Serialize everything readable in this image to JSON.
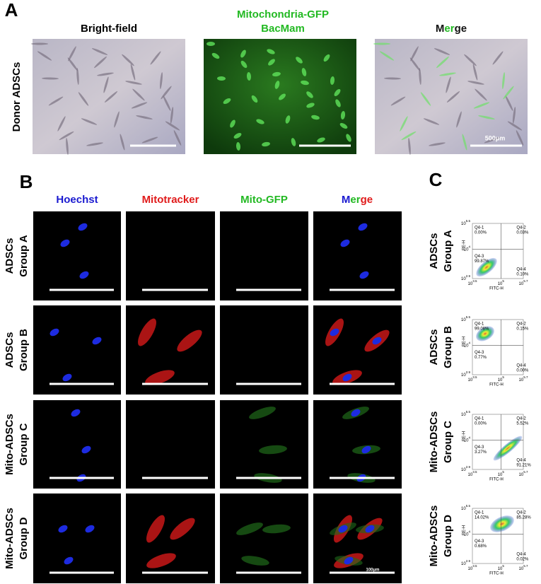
{
  "panel_a": {
    "label": "A",
    "bright_field": "Bright-field",
    "gfp_title": [
      "Mitochondria-GFP",
      "BacMam"
    ],
    "merge": [
      "M",
      "er",
      "ge"
    ],
    "row_label": "Donor ADSCs",
    "scale_bar": "500μm"
  },
  "panel_b": {
    "label": "B",
    "columns": [
      "Hoechst",
      "Mitotracker",
      "Mito-GFP"
    ],
    "merge": [
      "M",
      "er",
      "ge"
    ],
    "rows": [
      [
        "ADSCs",
        "Group A"
      ],
      [
        "ADSCs",
        "Group B"
      ],
      [
        "Mito-ADSCs",
        "Group C"
      ],
      [
        "Mito-ADSCs",
        "Group D"
      ]
    ],
    "scale_bar": "100μm"
  },
  "panel_c": {
    "label": "C",
    "y_axis": "PE-H",
    "x_axis": "FITC-H",
    "tick_base": "10",
    "y_tick_exponents": [
      "5.5",
      "4",
      "2.9"
    ],
    "x_tick_exponents": [
      "3.5",
      "5",
      "5.7"
    ],
    "plots": [
      {
        "quadrants": [
          {
            "name": "Q4-1",
            "percent": "0.00%"
          },
          {
            "name": "Q4-2",
            "percent": "0.03%"
          },
          {
            "name": "Q4-3",
            "percent": "99.87%"
          },
          {
            "name": "Q4-4",
            "percent": "0.10%"
          }
        ]
      },
      {
        "quadrants": [
          {
            "name": "Q4-1",
            "percent": "99.08%"
          },
          {
            "name": "Q4-2",
            "percent": "0.15%"
          },
          {
            "name": "Q4-3",
            "percent": "0.77%"
          },
          {
            "name": "Q4-4",
            "percent": "0.00%"
          }
        ]
      },
      {
        "quadrants": [
          {
            "name": "Q4-1",
            "percent": "0.00%"
          },
          {
            "name": "Q4-2",
            "percent": "5.52%"
          },
          {
            "name": "Q4-3",
            "percent": "3.27%"
          },
          {
            "name": "Q4-4",
            "percent": "91.21%"
          }
        ]
      },
      {
        "quadrants": [
          {
            "name": "Q4-1",
            "percent": "14.02%"
          },
          {
            "name": "Q4-2",
            "percent": "85.28%"
          },
          {
            "name": "Q4-3",
            "percent": "0.68%"
          },
          {
            "name": "Q4-4",
            "percent": "0.02%"
          }
        ]
      }
    ]
  }
}
